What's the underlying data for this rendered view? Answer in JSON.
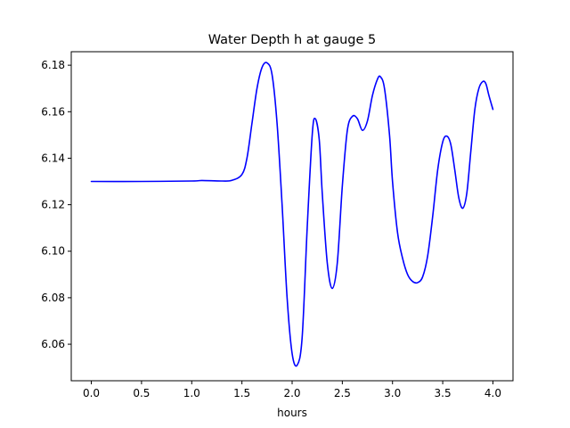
{
  "chart_data": {
    "type": "line",
    "title": "Water Depth h at gauge 5",
    "xlabel": "hours",
    "ylabel": "",
    "xlim": [
      -0.2,
      4.2
    ],
    "ylim": [
      6.0443,
      6.1858
    ],
    "grid": false,
    "xticks": [
      0.0,
      0.5,
      1.0,
      1.5,
      2.0,
      2.5,
      3.0,
      3.5,
      4.0
    ],
    "xtick_labels": [
      "0.0",
      "0.5",
      "1.0",
      "1.5",
      "2.0",
      "2.5",
      "3.0",
      "3.5",
      "4.0"
    ],
    "yticks": [
      6.06,
      6.08,
      6.1,
      6.12,
      6.14,
      6.16,
      6.18
    ],
    "ytick_labels": [
      "6.06",
      "6.08",
      "6.10",
      "6.12",
      "6.14",
      "6.16",
      "6.18"
    ],
    "series": [
      {
        "color": "#0000ff",
        "x": [
          0.0,
          0.5,
          1.0,
          1.1,
          1.3,
          1.4,
          1.5,
          1.55,
          1.6,
          1.65,
          1.7,
          1.75,
          1.8,
          1.85,
          1.9,
          1.95,
          2.0,
          2.05,
          2.1,
          2.15,
          2.2,
          2.23,
          2.27,
          2.3,
          2.35,
          2.4,
          2.45,
          2.5,
          2.55,
          2.6,
          2.65,
          2.7,
          2.75,
          2.8,
          2.85,
          2.88,
          2.92,
          2.97,
          3.0,
          3.05,
          3.1,
          3.15,
          3.2,
          3.25,
          3.3,
          3.35,
          3.4,
          3.45,
          3.5,
          3.54,
          3.58,
          3.62,
          3.66,
          3.7,
          3.74,
          3.78,
          3.82,
          3.86,
          3.9,
          3.93,
          3.96,
          4.0
        ],
        "y": [
          6.13,
          6.13,
          6.1302,
          6.1304,
          6.1302,
          6.1305,
          6.133,
          6.14,
          6.155,
          6.17,
          6.179,
          6.181,
          6.176,
          6.155,
          6.12,
          6.08,
          6.056,
          6.051,
          6.063,
          6.11,
          6.15,
          6.157,
          6.148,
          6.125,
          6.095,
          6.084,
          6.095,
          6.128,
          6.152,
          6.158,
          6.157,
          6.152,
          6.156,
          6.167,
          6.174,
          6.175,
          6.17,
          6.15,
          6.13,
          6.108,
          6.097,
          6.09,
          6.087,
          6.0865,
          6.089,
          6.098,
          6.115,
          6.135,
          6.147,
          6.1495,
          6.146,
          6.135,
          6.123,
          6.1185,
          6.125,
          6.143,
          6.161,
          6.17,
          6.173,
          6.172,
          6.167,
          6.161
        ]
      }
    ]
  }
}
